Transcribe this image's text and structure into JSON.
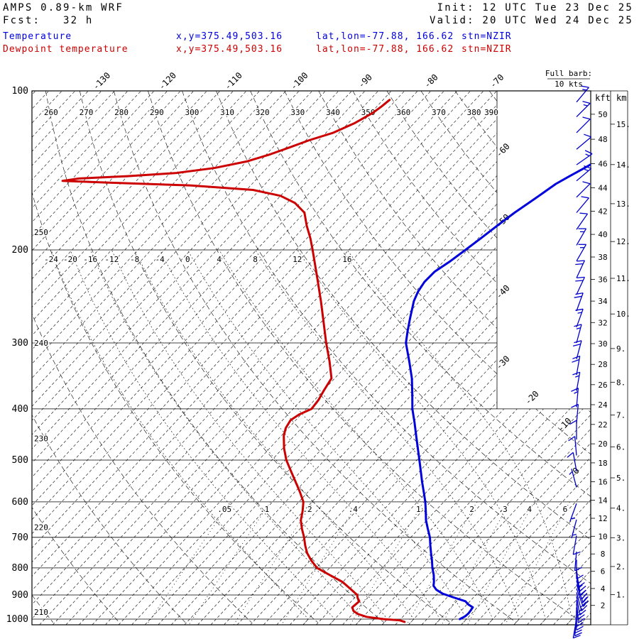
{
  "header": {
    "model": "AMPS 0.89-km WRF",
    "fcst": "Fcst:   32 h",
    "init": "Init: 12 UTC Tue 23 Dec 25",
    "valid": "Valid: 20 UTC Wed 24 Dec 25"
  },
  "legend": {
    "temperature": {
      "label": "Temperature",
      "xy": "x,y=375.49,503.16",
      "latlon": "lat,lon=-77.88, 166.62",
      "stn": "stn=NZIR",
      "color": "#0000dd"
    },
    "dewpoint": {
      "label": "Dewpoint temperature",
      "xy": "x,y=375.49,503.16",
      "latlon": "lat,lon=-77.88, 166.62",
      "stn": "stn=NZIR",
      "color": "#cc0000"
    }
  },
  "barb_note": {
    "title": "Full barb:",
    "value": "10 kts"
  },
  "axes": {
    "pressure_hpa": [
      100,
      200,
      300,
      400,
      500,
      600,
      700,
      800,
      900,
      1000
    ],
    "top_temp_c": [
      -130,
      -120,
      -110,
      -100,
      -90,
      -80,
      -70
    ],
    "right_temp_c": [
      -60,
      -50,
      -40,
      -30,
      -20,
      -10,
      0
    ],
    "theta_top_k": [
      260,
      270,
      280,
      290,
      300,
      310,
      320,
      330,
      340,
      350,
      360,
      370,
      380,
      390
    ],
    "theta_left_k": [
      250,
      240,
      230,
      220,
      210
    ],
    "moist_adiabat_c": [
      -24,
      -20,
      -16,
      -12,
      -8,
      -4,
      0,
      4,
      8,
      12,
      16
    ],
    "mixing_ratio_labels": [
      ".05",
      ".1",
      ".2",
      ".4",
      "1",
      "2",
      "3",
      "4",
      "6"
    ],
    "mixing_ratio_g_kg": [
      0.05,
      0.1,
      0.2,
      0.4,
      1,
      2,
      3,
      4,
      6
    ],
    "kft_header": "kft",
    "km_header": "km",
    "kft_ticks": [
      50,
      48,
      46,
      44,
      42,
      40,
      38,
      36,
      34,
      32,
      30,
      28,
      26,
      24,
      22,
      20,
      18,
      16,
      14,
      12,
      10,
      8,
      6,
      4,
      2
    ],
    "km_ticks": [
      15,
      14,
      13,
      12,
      11,
      10,
      9,
      8,
      7,
      6,
      5,
      4,
      3,
      2,
      1
    ]
  },
  "chart_data": {
    "type": "line",
    "variant": "skew-t log-p sounding",
    "station": "NZIR",
    "pressure_scale": "log",
    "pressure_range_hpa": [
      100,
      1025
    ],
    "isotherm_step_c": 2,
    "full_barb_kt": 10,
    "temperature": {
      "name": "Temperature",
      "color": "#0000dd",
      "units": {
        "p": "hPa",
        "t": "C"
      },
      "points_p_c": [
        [
          1000,
          -1.0
        ],
        [
          988,
          -0.6
        ],
        [
          975,
          -0.5
        ],
        [
          962,
          -0.6
        ],
        [
          950,
          -0.7
        ],
        [
          938,
          -1.8
        ],
        [
          925,
          -2.7
        ],
        [
          910,
          -5.0
        ],
        [
          895,
          -7.2
        ],
        [
          880,
          -8.7
        ],
        [
          865,
          -9.7
        ],
        [
          850,
          -10.2
        ],
        [
          825,
          -11.2
        ],
        [
          800,
          -12.4
        ],
        [
          775,
          -13.5
        ],
        [
          750,
          -14.7
        ],
        [
          725,
          -15.9
        ],
        [
          700,
          -17.1
        ],
        [
          675,
          -18.6
        ],
        [
          650,
          -20.1
        ],
        [
          625,
          -21.4
        ],
        [
          600,
          -22.8
        ],
        [
          575,
          -24.4
        ],
        [
          550,
          -26.1
        ],
        [
          525,
          -27.8
        ],
        [
          500,
          -29.6
        ],
        [
          475,
          -31.5
        ],
        [
          450,
          -33.5
        ],
        [
          425,
          -35.6
        ],
        [
          400,
          -37.9
        ],
        [
          375,
          -40.0
        ],
        [
          350,
          -42.3
        ],
        [
          325,
          -45.1
        ],
        [
          300,
          -48.2
        ],
        [
          285,
          -49.6
        ],
        [
          270,
          -51.0
        ],
        [
          250,
          -52.9
        ],
        [
          240,
          -53.6
        ],
        [
          230,
          -54.0
        ],
        [
          220,
          -53.9
        ],
        [
          210,
          -53.0
        ],
        [
          200,
          -52.3
        ],
        [
          190,
          -51.6
        ],
        [
          180,
          -50.9
        ],
        [
          170,
          -50.1
        ],
        [
          160,
          -49.0
        ],
        [
          150,
          -47.9
        ],
        [
          145,
          -46.9
        ],
        [
          140,
          -45.8
        ],
        [
          137,
          -45.2
        ]
      ]
    },
    "dewpoint": {
      "name": "Dewpoint temperature",
      "color": "#cc0000",
      "units": {
        "p": "hPa",
        "t": "C"
      },
      "points_p_c": [
        [
          1012,
          -9.0
        ],
        [
          1005,
          -10.0
        ],
        [
          1000,
          -12.6
        ],
        [
          990,
          -15.5
        ],
        [
          978,
          -17.2
        ],
        [
          965,
          -18.3
        ],
        [
          950,
          -19.0
        ],
        [
          938,
          -18.9
        ],
        [
          925,
          -18.8
        ],
        [
          912,
          -19.5
        ],
        [
          900,
          -20.0
        ],
        [
          875,
          -22.0
        ],
        [
          850,
          -24.1
        ],
        [
          825,
          -27.0
        ],
        [
          800,
          -29.9
        ],
        [
          775,
          -31.8
        ],
        [
          750,
          -33.5
        ],
        [
          725,
          -34.9
        ],
        [
          700,
          -36.2
        ],
        [
          675,
          -37.7
        ],
        [
          650,
          -39.1
        ],
        [
          625,
          -40.1
        ],
        [
          600,
          -41.3
        ],
        [
          575,
          -43.2
        ],
        [
          550,
          -45.3
        ],
        [
          525,
          -47.5
        ],
        [
          500,
          -49.8
        ],
        [
          475,
          -51.8
        ],
        [
          450,
          -53.6
        ],
        [
          435,
          -54.4
        ],
        [
          420,
          -54.8
        ],
        [
          410,
          -54.3
        ],
        [
          400,
          -53.2
        ],
        [
          385,
          -53.4
        ],
        [
          370,
          -53.9
        ],
        [
          350,
          -54.5
        ],
        [
          325,
          -57.2
        ],
        [
          300,
          -60.3
        ],
        [
          275,
          -63.5
        ],
        [
          250,
          -67.0
        ],
        [
          225,
          -71.0
        ],
        [
          200,
          -75.5
        ],
        [
          190,
          -77.5
        ],
        [
          180,
          -79.8
        ],
        [
          170,
          -82.0
        ],
        [
          163,
          -84.8
        ],
        [
          158,
          -88.0
        ],
        [
          154,
          -93.0
        ],
        [
          151,
          -103.0
        ],
        [
          149,
          -117.0
        ],
        [
          148,
          -123.2
        ],
        [
          146.5,
          -121.0
        ],
        [
          145,
          -114.0
        ],
        [
          143,
          -107.0
        ],
        [
          140,
          -102.0
        ],
        [
          136,
          -98.0
        ],
        [
          132,
          -95.5
        ],
        [
          128,
          -93.5
        ],
        [
          124,
          -91.5
        ],
        [
          120,
          -88.9
        ],
        [
          115,
          -87.0
        ],
        [
          110,
          -85.7
        ],
        [
          107,
          -85.3
        ],
        [
          104,
          -85.0
        ]
      ]
    },
    "winds_p_kt_dir": [
      [
        105,
        15,
        40
      ],
      [
        112,
        15,
        45
      ],
      [
        120,
        10,
        45
      ],
      [
        129,
        10,
        50
      ],
      [
        138,
        15,
        55
      ],
      [
        148,
        15,
        50
      ],
      [
        159,
        10,
        45
      ],
      [
        170,
        10,
        40
      ],
      [
        183,
        10,
        35
      ],
      [
        196,
        15,
        30
      ],
      [
        210,
        15,
        30
      ],
      [
        226,
        20,
        25
      ],
      [
        243,
        20,
        25
      ],
      [
        261,
        20,
        20
      ],
      [
        280,
        15,
        20
      ],
      [
        300,
        15,
        15
      ],
      [
        322,
        20,
        15
      ],
      [
        345,
        20,
        10
      ],
      [
        370,
        15,
        10
      ],
      [
        397,
        15,
        5
      ],
      [
        426,
        10,
        5
      ],
      [
        457,
        10,
        0
      ],
      [
        490,
        10,
        355
      ],
      [
        525,
        10,
        350
      ],
      [
        563,
        5,
        345
      ],
      [
        604,
        5,
        200
      ],
      [
        648,
        5,
        195
      ],
      [
        695,
        10,
        190
      ],
      [
        745,
        10,
        185
      ],
      [
        772,
        10,
        180
      ],
      [
        800,
        15,
        175
      ],
      [
        815,
        15,
        170
      ],
      [
        830,
        15,
        170
      ],
      [
        845,
        20,
        165
      ],
      [
        860,
        20,
        160
      ],
      [
        875,
        20,
        160
      ],
      [
        890,
        20,
        165
      ],
      [
        905,
        15,
        170
      ],
      [
        920,
        15,
        175
      ],
      [
        935,
        15,
        175
      ],
      [
        950,
        10,
        180
      ],
      [
        965,
        10,
        180
      ],
      [
        978,
        10,
        185
      ],
      [
        990,
        10,
        185
      ],
      [
        1000,
        10,
        190
      ]
    ],
    "reference_lines": {
      "dry_adiabats_k": [
        200,
        210,
        220,
        230,
        240,
        250,
        260,
        270,
        280,
        290,
        300,
        310,
        320,
        330,
        340,
        350,
        360,
        370,
        380,
        390
      ],
      "moist_adiabats_c": [
        -24,
        -20,
        -16,
        -12,
        -8,
        -4,
        0,
        4,
        8,
        12,
        16
      ],
      "mixing_ratio_g_kg": [
        0.05,
        0.1,
        0.2,
        0.4,
        1,
        2,
        3,
        4,
        6
      ]
    }
  }
}
